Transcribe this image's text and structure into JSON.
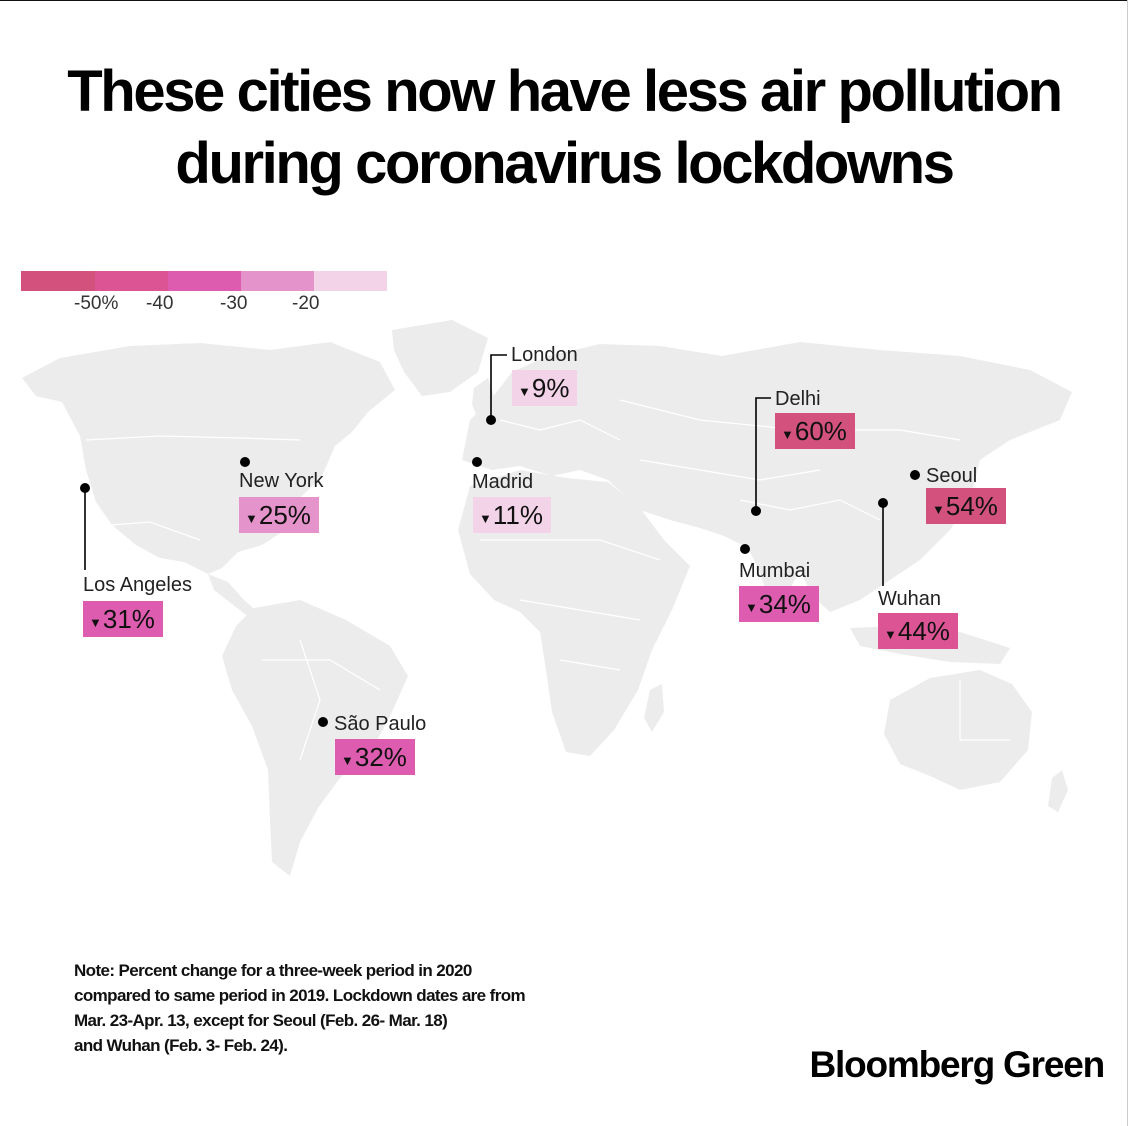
{
  "title": {
    "line1": "These cities now have less air pollution",
    "line2": "during coronavirus lockdowns"
  },
  "legend": {
    "colors": [
      "#d2527d",
      "#dc5494",
      "#dd5cb0",
      "#e594cb",
      "#f2d3e8"
    ],
    "ticks": [
      "-50%",
      "-40",
      "-30",
      "-20"
    ]
  },
  "map": {
    "land_color": "#ececec",
    "border_color": "#ffffff",
    "marker_color": "#000000"
  },
  "cities": [
    {
      "name": "London",
      "value": "9%",
      "change_percent": -9,
      "color": "#f2d3e8"
    },
    {
      "name": "Delhi",
      "value": "60%",
      "change_percent": -60,
      "color": "#d2527d"
    },
    {
      "name": "Seoul",
      "value": "54%",
      "change_percent": -54,
      "color": "#d2527d"
    },
    {
      "name": "New York",
      "value": "25%",
      "change_percent": -25,
      "color": "#e594cb"
    },
    {
      "name": "Madrid",
      "value": "11%",
      "change_percent": -11,
      "color": "#f2d3e8"
    },
    {
      "name": "Los Angeles",
      "value": "31%",
      "change_percent": -31,
      "color": "#dd5cb0"
    },
    {
      "name": "Mumbai",
      "value": "34%",
      "change_percent": -34,
      "color": "#dd5cb0"
    },
    {
      "name": "Wuhan",
      "value": "44%",
      "change_percent": -44,
      "color": "#dc5494"
    },
    {
      "name": "São Paulo",
      "value": "32%",
      "change_percent": -32,
      "color": "#dd5cb0"
    }
  ],
  "note": {
    "line1": "Note: Percent change for a three-week period in 2020",
    "line2": "compared to same period in 2019. Lockdown dates are from",
    "line3": "Mar. 23-Apr. 13, except for Seoul (Feb. 26- Mar. 18)",
    "line4": "and Wuhan (Feb. 3- Feb. 24)."
  },
  "brand": "Bloomberg Green"
}
